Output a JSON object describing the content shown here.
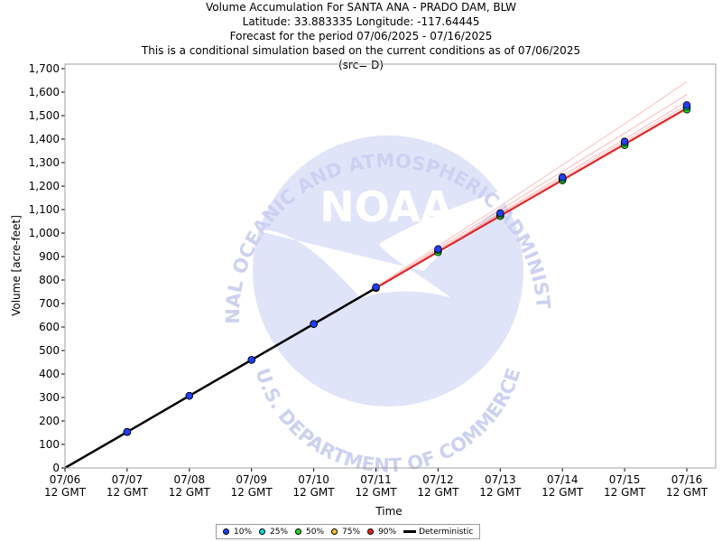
{
  "header": {
    "title": "Volume Accumulation For SANTA ANA - PRADO DAM, BLW",
    "location": "Latitude: 33.883335 Longitude: -117.64445",
    "period": "Forecast for the period 07/06/2025 - 07/16/2025",
    "note": "This is a conditional simulation based on the current conditions as of 07/06/2025",
    "source": "(src= D)"
  },
  "chart_data": {
    "type": "line",
    "title": "Volume Accumulation For SANTA ANA - PRADO DAM, BLW",
    "xlabel": "Time",
    "ylabel": "Volume [acre-feet]",
    "ylim": [
      0,
      1700
    ],
    "y_ticks": [
      0,
      100,
      200,
      300,
      400,
      500,
      600,
      700,
      800,
      900,
      1000,
      1100,
      1200,
      1300,
      1400,
      1500,
      1600,
      1700
    ],
    "y_tick_labels": [
      "0",
      "100",
      "200",
      "300",
      "400",
      "500",
      "600",
      "700",
      "800",
      "900",
      "1,000",
      "1,100",
      "1,200",
      "1,300",
      "1,400",
      "1,500",
      "1,600",
      "1,700"
    ],
    "categories": [
      "07/06",
      "07/07",
      "07/08",
      "07/09",
      "07/10",
      "07/11",
      "07/12",
      "07/13",
      "07/14",
      "07/15",
      "07/16"
    ],
    "x_tick_labels": [
      [
        "07/06",
        "12 GMT"
      ],
      [
        "07/07",
        "12 GMT"
      ],
      [
        "07/08",
        "12 GMT"
      ],
      [
        "07/09",
        "12 GMT"
      ],
      [
        "07/10",
        "12 GMT"
      ],
      [
        "07/11",
        "12 GMT"
      ],
      [
        "07/12",
        "12 GMT"
      ],
      [
        "07/13",
        "12 GMT"
      ],
      [
        "07/14",
        "12 GMT"
      ],
      [
        "07/15",
        "12 GMT"
      ],
      [
        "07/16",
        "12 GMT"
      ]
    ],
    "deterministic": [
      0,
      153,
      307,
      460,
      613,
      766,
      920,
      1073,
      1226,
      1379,
      1532
    ],
    "series": [
      {
        "name": "10%",
        "color": "#1f3fff",
        "values": [
          null,
          153,
          307,
          460,
          613,
          770,
          932,
          1085,
          1238,
          1390,
          1545
        ]
      },
      {
        "name": "25%",
        "color": "#00dddd",
        "values": [
          null,
          153,
          307,
          460,
          613,
          768,
          928,
          1080,
          1232,
          1384,
          1538
        ]
      },
      {
        "name": "50%",
        "color": "#22dd22",
        "values": [
          null,
          153,
          307,
          460,
          613,
          766,
          918,
          1072,
          1224,
          1374,
          1526
        ]
      },
      {
        "name": "75%",
        "color": "#ffbb33",
        "values": [
          null,
          153,
          307,
          460,
          613,
          766,
          920,
          1075,
          1228,
          1380,
          1532
        ]
      },
      {
        "name": "90%",
        "color": "#ee2222",
        "values": [
          null,
          153,
          307,
          460,
          613,
          766,
          921,
          1076,
          1229,
          1381,
          1534
        ]
      }
    ],
    "trace_color": "#ff6666",
    "traces": [
      [
        0,
        153,
        307,
        460,
        613,
        770,
        945,
        1115,
        1290,
        1465,
        1645
      ],
      [
        0,
        153,
        307,
        460,
        613,
        768,
        935,
        1098,
        1262,
        1425,
        1590
      ],
      [
        0,
        153,
        307,
        460,
        613,
        767,
        928,
        1085,
        1245,
        1400,
        1560
      ],
      [
        0,
        153,
        307,
        460,
        613,
        766,
        924,
        1080,
        1236,
        1390,
        1545
      ],
      [
        0,
        153,
        307,
        460,
        613,
        766,
        920,
        1073,
        1226,
        1379,
        1532
      ],
      [
        0,
        153,
        307,
        460,
        613,
        766,
        918,
        1070,
        1222,
        1374,
        1526
      ]
    ],
    "legend": {
      "placement": "bottom-center",
      "items": [
        {
          "label": "10%",
          "color": "#1f3fff",
          "kind": "dot"
        },
        {
          "label": "25%",
          "color": "#00dddd",
          "kind": "dot"
        },
        {
          "label": "50%",
          "color": "#22dd22",
          "kind": "dot"
        },
        {
          "label": "75%",
          "color": "#ffbb33",
          "kind": "dot"
        },
        {
          "label": "90%",
          "color": "#ee2222",
          "kind": "dot"
        },
        {
          "label": "Deterministic",
          "color": "#000000",
          "kind": "line"
        }
      ]
    },
    "watermark": {
      "logo_text": "NOAA",
      "ring_top": "NATIONAL OCEANIC AND ATMOSPHERIC ADMINISTRATION",
      "ring_bottom": "U.S. DEPARTMENT OF COMMERCE",
      "color": "#c8cdf0"
    }
  }
}
